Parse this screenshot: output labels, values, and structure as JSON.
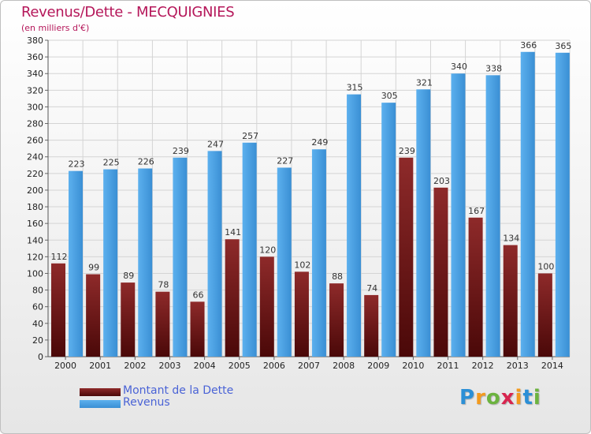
{
  "chart_data": {
    "type": "bar",
    "title": "Revenus/Dette - MECQUIGNIES",
    "subtitle": "(en milliers d'€)",
    "xlabel": "",
    "ylabel": "",
    "ylim": [
      0,
      380
    ],
    "yticks": [
      0,
      20,
      40,
      60,
      80,
      100,
      120,
      140,
      160,
      180,
      200,
      220,
      240,
      260,
      280,
      300,
      320,
      340,
      360,
      380
    ],
    "grid": true,
    "legend_position": "bottom-left",
    "categories": [
      "2000",
      "2001",
      "2002",
      "2003",
      "2004",
      "2005",
      "2006",
      "2007",
      "2008",
      "2009",
      "2010",
      "2011",
      "2012",
      "2013",
      "2014"
    ],
    "series": [
      {
        "name": "Montant de la Dette",
        "color": "#7a1e1e",
        "values": [
          112,
          99,
          89,
          78,
          66,
          141,
          120,
          102,
          88,
          74,
          239,
          203,
          167,
          134,
          100
        ]
      },
      {
        "name": "Revenus",
        "color": "#4aa3e6",
        "values": [
          223,
          225,
          226,
          239,
          247,
          257,
          227,
          249,
          315,
          305,
          321,
          340,
          338,
          366,
          365
        ]
      }
    ]
  },
  "logo": {
    "letters": [
      "P",
      "r",
      "o",
      "x",
      "i",
      "t",
      "i"
    ],
    "colors": [
      "#2b8fd6",
      "#f39a1e",
      "#6cb33f",
      "#d8254f",
      "#f39a1e",
      "#2b8fd6",
      "#6cb33f"
    ]
  }
}
